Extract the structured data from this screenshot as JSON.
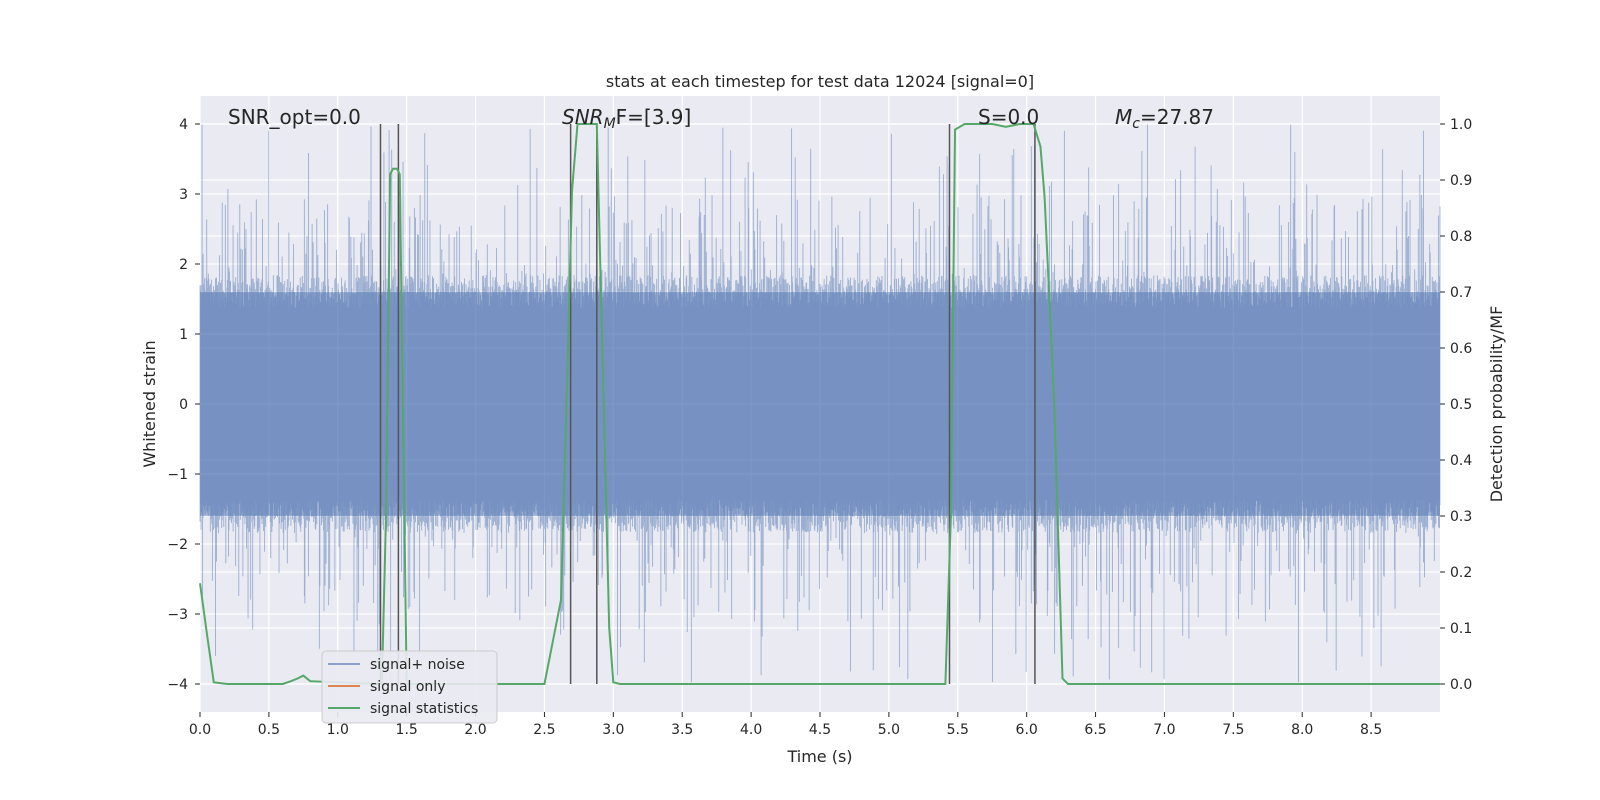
{
  "chart_data": {
    "type": "line",
    "title": "stats at each timestep for test data 12024 [signal=0]",
    "xlabel": "Time (s)",
    "ylabel_left": "Whitened strain",
    "ylabel_right": "Detection probability/MF",
    "xlim": [
      0.0,
      9.0
    ],
    "ylim_left": [
      -4.4,
      4.4
    ],
    "ylim_right": [
      -0.05,
      1.05
    ],
    "x_ticks": [
      0.0,
      0.5,
      1.0,
      1.5,
      2.0,
      2.5,
      3.0,
      3.5,
      4.0,
      4.5,
      5.0,
      5.5,
      6.0,
      6.5,
      7.0,
      7.5,
      8.0,
      8.5
    ],
    "x_tick_labels": [
      "0.0",
      "0.5",
      "1.0",
      "1.5",
      "2.0",
      "2.5",
      "3.0",
      "3.5",
      "4.0",
      "4.5",
      "5.0",
      "5.5",
      "6.0",
      "6.5",
      "7.0",
      "7.5",
      "8.0",
      "8.5"
    ],
    "y_left_ticks": [
      -4,
      -3,
      -2,
      -1,
      0,
      1,
      2,
      3,
      4
    ],
    "y_left_tick_labels": [
      "−4",
      "−3",
      "−2",
      "−1",
      "0",
      "1",
      "2",
      "3",
      "4"
    ],
    "y_right_ticks": [
      0.0,
      0.1,
      0.2,
      0.3,
      0.4,
      0.5,
      0.6,
      0.7,
      0.8,
      0.9,
      1.0
    ],
    "y_right_tick_labels": [
      "0.0",
      "0.1",
      "0.2",
      "0.3",
      "0.4",
      "0.5",
      "0.6",
      "0.7",
      "0.8",
      "0.9",
      "1.0"
    ],
    "grid": true,
    "background": "#eaeaf2",
    "annotations": [
      "SNR_opt=0.0",
      "SNR",
      "M",
      "F=[3.9]",
      "S=0.0",
      "M",
      "c",
      "=27.87"
    ],
    "series": [
      {
        "name": "signal+ noise",
        "color": "#4c72b0",
        "axis": "left",
        "description_level": "dense noise, approximate band",
        "band_core": [
          -1.6,
          1.6
        ],
        "band_peak": [
          -4.0,
          4.0
        ]
      },
      {
        "name": "signal only",
        "color": "#dd8452",
        "axis": "left",
        "x": [],
        "y": []
      },
      {
        "name": "signal statistics",
        "color": "#55a868",
        "axis": "right",
        "x": [
          0.0,
          0.05,
          0.1,
          0.2,
          0.6,
          0.66,
          0.71,
          0.75,
          0.8,
          1.3,
          1.32,
          1.35,
          1.38,
          1.4,
          1.43,
          1.45,
          1.5,
          1.52,
          1.55,
          2.5,
          2.62,
          2.66,
          2.7,
          2.74,
          2.76,
          2.88,
          2.93,
          2.97,
          3.0,
          3.05,
          3.1,
          5.41,
          5.45,
          5.48,
          5.55,
          5.75,
          5.85,
          5.95,
          6.05,
          6.1,
          6.13,
          6.2,
          6.26,
          6.3,
          9.0
        ],
        "y": [
          0.18,
          0.09,
          0.003,
          0.0,
          0.0,
          0.005,
          0.01,
          0.015,
          0.005,
          0.0,
          0.0,
          0.3,
          0.91,
          0.92,
          0.92,
          0.91,
          0.0,
          0.0,
          0.0,
          0.0,
          0.15,
          0.5,
          0.88,
          1.0,
          1.0,
          1.0,
          0.5,
          0.1,
          0.003,
          0.0,
          0.0,
          0.0,
          0.3,
          0.99,
          1.0,
          1.0,
          0.995,
          1.0,
          1.0,
          0.96,
          0.87,
          0.5,
          0.01,
          0.0,
          0.0
        ]
      }
    ],
    "vertical_lines": [
      1.31,
      1.44,
      2.69,
      2.88,
      5.44,
      6.06
    ],
    "vertical_line_color": "#555555",
    "legend": {
      "position": "lower-left",
      "entries": [
        "signal+ noise",
        "signal only",
        "signal statistics"
      ]
    }
  }
}
